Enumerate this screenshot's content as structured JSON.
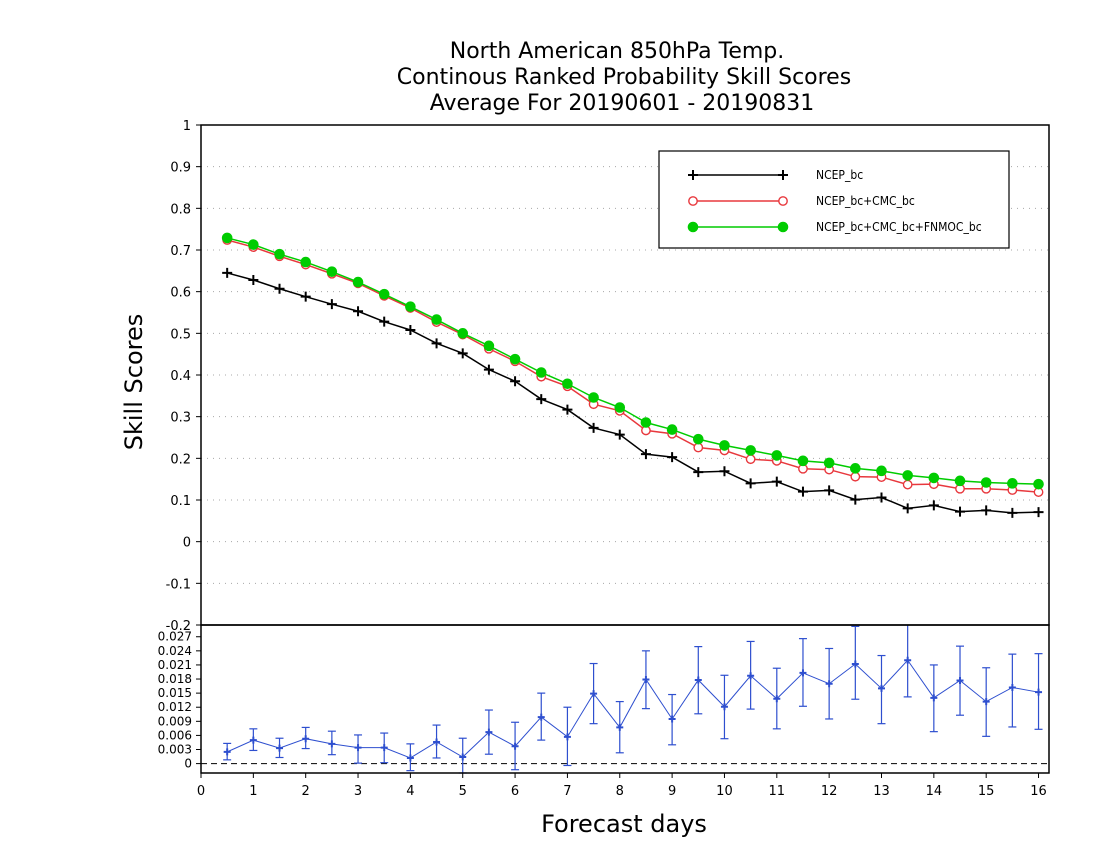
{
  "chart_data": [
    {
      "type": "line",
      "title": [
        "North American 850hPa Temp.",
        "Continous Ranked Probability Skill Scores",
        "Average For 20190601 - 20190831"
      ],
      "ylabel": "Skill Scores",
      "xlabel": "",
      "ylim": [
        -0.2,
        1
      ],
      "xlim": [
        0,
        16.2
      ],
      "yticks": [
        "-0.2",
        "-0.1",
        "0",
        "0.1",
        "0.2",
        "0.3",
        "0.4",
        "0.5",
        "0.6",
        "0.7",
        "0.8",
        "0.9",
        "1"
      ],
      "grid": "horizontal dotted",
      "legend_position": "top-right",
      "x": [
        0.5,
        1,
        1.5,
        2,
        2.5,
        3,
        3.5,
        4,
        4.5,
        5,
        5.5,
        6,
        6.5,
        7,
        7.5,
        8,
        8.5,
        9,
        9.5,
        10,
        10.5,
        11,
        11.5,
        12,
        12.5,
        13,
        13.5,
        14,
        14.5,
        15,
        15.5,
        16
      ],
      "series": [
        {
          "name": "NCEP_bc",
          "color": "#000000",
          "marker": "plus",
          "values": [
            0.645,
            0.628,
            0.607,
            0.588,
            0.57,
            0.553,
            0.528,
            0.508,
            0.476,
            0.452,
            0.413,
            0.385,
            0.342,
            0.317,
            0.273,
            0.257,
            0.21,
            0.203,
            0.167,
            0.169,
            0.14,
            0.144,
            0.12,
            0.123,
            0.101,
            0.106,
            0.08,
            0.087,
            0.072,
            0.075,
            0.069,
            0.071
          ]
        },
        {
          "name": "NCEP_bc+CMC_bc",
          "color": "#e8383d",
          "marker": "open-circle",
          "values": [
            0.724,
            0.707,
            0.685,
            0.665,
            0.643,
            0.62,
            0.59,
            0.561,
            0.527,
            0.497,
            0.463,
            0.433,
            0.396,
            0.373,
            0.33,
            0.314,
            0.267,
            0.259,
            0.226,
            0.219,
            0.198,
            0.194,
            0.175,
            0.173,
            0.156,
            0.155,
            0.137,
            0.138,
            0.127,
            0.127,
            0.124,
            0.119
          ]
        },
        {
          "name": "NCEP_bc+CMC_bc+FNMOC_bc",
          "color": "#00cc00",
          "marker": "filled-circle",
          "values": [
            0.729,
            0.713,
            0.69,
            0.671,
            0.648,
            0.623,
            0.594,
            0.564,
            0.533,
            0.5,
            0.47,
            0.438,
            0.406,
            0.379,
            0.346,
            0.322,
            0.286,
            0.269,
            0.246,
            0.231,
            0.219,
            0.207,
            0.194,
            0.189,
            0.176,
            0.17,
            0.159,
            0.153,
            0.146,
            0.142,
            0.14,
            0.138
          ]
        }
      ]
    },
    {
      "type": "line",
      "xlabel": "Forecast days",
      "xlim": [
        0,
        16.2
      ],
      "ylim": [
        -0.002,
        0.0295
      ],
      "xticks": [
        "0",
        "1",
        "2",
        "3",
        "4",
        "5",
        "6",
        "7",
        "8",
        "9",
        "10",
        "11",
        "12",
        "13",
        "14",
        "15",
        "16"
      ],
      "yticks": [
        "0",
        "0.003",
        "0.006",
        "0.009",
        "0.012",
        "0.015",
        "0.018",
        "0.021",
        "0.024",
        "0.027"
      ],
      "zero_line": "dashed",
      "x": [
        0.5,
        1,
        1.5,
        2,
        2.5,
        3,
        3.5,
        4,
        4.5,
        5,
        5.5,
        6,
        6.5,
        7,
        7.5,
        8,
        8.5,
        9,
        9.5,
        10,
        10.5,
        11,
        11.5,
        12,
        12.5,
        13,
        13.5,
        14,
        14.5,
        15,
        15.5,
        16
      ],
      "series": [
        {
          "name": "",
          "color": "#2e4fcf",
          "marker": "plus",
          "error_bars": true,
          "values": [
            0.0025,
            0.005,
            0.0033,
            0.0053,
            0.0042,
            0.0034,
            0.0034,
            0.0012,
            0.0046,
            0.0014,
            0.0067,
            0.0037,
            0.0099,
            0.0057,
            0.0149,
            0.0077,
            0.0179,
            0.0095,
            0.0178,
            0.0121,
            0.0187,
            0.0138,
            0.0193,
            0.017,
            0.0212,
            0.016,
            0.022,
            0.014,
            0.0177,
            0.0132,
            0.0162,
            0.0152
          ],
          "lower": [
            0.0008,
            0.0028,
            0.0013,
            0.0032,
            0.0019,
            0.0001,
            0.0002,
            -0.0015,
            0.0012,
            -0.002,
            0.002,
            -0.0013,
            0.005,
            -0.0004,
            0.0085,
            0.0023,
            0.0117,
            0.004,
            0.0106,
            0.0053,
            0.0116,
            0.0074,
            0.0122,
            0.0095,
            0.0137,
            0.0085,
            0.0142,
            0.0068,
            0.0103,
            0.0058,
            0.0078,
            0.0073
          ],
          "upper": [
            0.0043,
            0.0074,
            0.0054,
            0.0077,
            0.0069,
            0.0061,
            0.0065,
            0.0042,
            0.0082,
            0.0054,
            0.0114,
            0.0088,
            0.015,
            0.012,
            0.0213,
            0.0132,
            0.024,
            0.0147,
            0.0249,
            0.0188,
            0.026,
            0.0203,
            0.0266,
            0.0245,
            0.0292,
            0.023,
            0.0298,
            0.021,
            0.025,
            0.0204,
            0.0233,
            0.0234
          ]
        }
      ]
    }
  ]
}
